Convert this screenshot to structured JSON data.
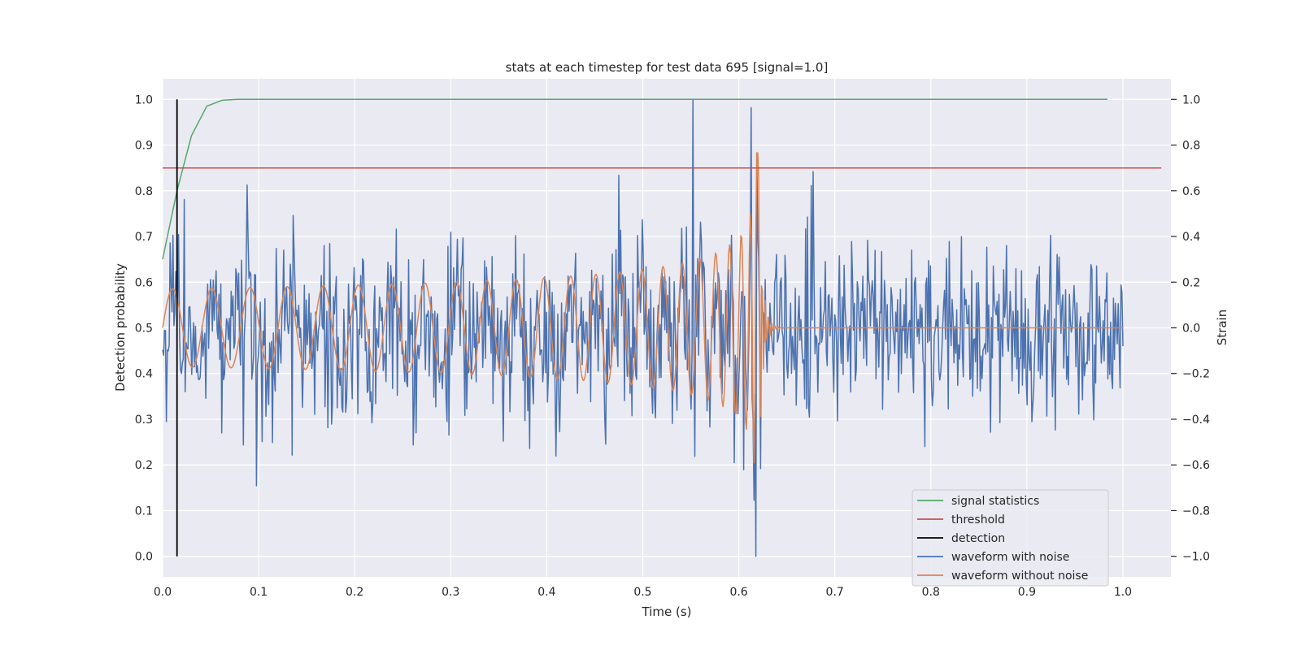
{
  "chart_data": {
    "type": "line",
    "title": "stats at each timestep for test data 695 [signal=1.0]",
    "xlabel": "Time (s)",
    "ylabel_left": "Detection probability",
    "ylabel_right": "Strain",
    "xlim": [
      0.0,
      1.05
    ],
    "ylim_left": [
      -0.045,
      1.045
    ],
    "ylim_right": [
      -1.09,
      1.09
    ],
    "x_ticks": [
      0.0,
      0.1,
      0.2,
      0.3,
      0.4,
      0.5,
      0.6,
      0.7,
      0.8,
      0.9,
      1.0
    ],
    "x_tick_labels": [
      "0.0",
      "0.1",
      "0.2",
      "0.3",
      "0.4",
      "0.5",
      "0.6",
      "0.7",
      "0.8",
      "0.9",
      "1.0"
    ],
    "y_left_ticks": [
      0.0,
      0.1,
      0.2,
      0.3,
      0.4,
      0.5,
      0.6,
      0.7,
      0.8,
      0.9,
      1.0
    ],
    "y_left_tick_labels": [
      "0.0",
      "0.1",
      "0.2",
      "0.3",
      "0.4",
      "0.5",
      "0.6",
      "0.7",
      "0.8",
      "0.9",
      "1.0"
    ],
    "y_right_ticks": [
      -1.0,
      -0.8,
      -0.6,
      -0.4,
      -0.2,
      0.0,
      0.2,
      0.4,
      0.6,
      0.8,
      1.0
    ],
    "y_right_tick_labels": [
      "−1.0",
      "−0.8",
      "−0.6",
      "−0.4",
      "−0.2",
      "0.0",
      "0.2",
      "0.4",
      "0.6",
      "0.8",
      "1.0"
    ],
    "grid": true,
    "legend_position": "lower-right",
    "colors": {
      "background": "#eaeaf2",
      "grid": "#ffffff",
      "signal_statistics": "#55a868",
      "threshold": "#c44e52",
      "detection": "#000000",
      "waveform_with_noise": "#4c72b0",
      "waveform_without_noise": "#dd8452"
    },
    "series": [
      {
        "name": "signal statistics",
        "axis": "left",
        "x": [
          0.0,
          0.015,
          0.03,
          0.046,
          0.062,
          0.078,
          0.1,
          0.2,
          0.4,
          0.6,
          0.8,
          0.984
        ],
        "y": [
          0.65,
          0.8,
          0.92,
          0.985,
          0.998,
          1.0,
          1.0,
          1.0,
          1.0,
          1.0,
          1.0,
          1.0
        ]
      },
      {
        "name": "threshold",
        "axis": "left",
        "x": [
          0.0,
          1.04
        ],
        "y": [
          0.85,
          0.85
        ]
      },
      {
        "name": "detection",
        "axis": "left",
        "x": [
          0.015,
          0.015
        ],
        "y": [
          0.0,
          1.0
        ]
      },
      {
        "name": "waveform with noise",
        "axis": "right",
        "description": "noisy strain, 1024 samples over 0–1 s, std ≈ 0.2 strain, peak 1.0 at ≈ 0.552 s, minimum −1.0 at ≈ 0.618 s",
        "samples": 1024,
        "x_range": [
          0.0,
          1.0
        ],
        "std": 0.2,
        "max": {
          "x": 0.552,
          "y": 1.0
        },
        "min": {
          "x": 0.618,
          "y": -1.0
        }
      },
      {
        "name": "waveform without noise",
        "axis": "right",
        "description": "chirp, amplitude ≈ 0.17 growing to ≈ 0.8, frequency ≈ 24 Hz rising to merger at ≈ 0.62 s, ringdown to 0 by ≈ 0.64 s",
        "x_range": [
          0.0,
          1.0
        ],
        "amplitude_start": 0.17,
        "amplitude_peak": 0.8,
        "freq_start_hz": 24,
        "merger_time": 0.62,
        "ringdown_end": 0.64
      }
    ]
  }
}
